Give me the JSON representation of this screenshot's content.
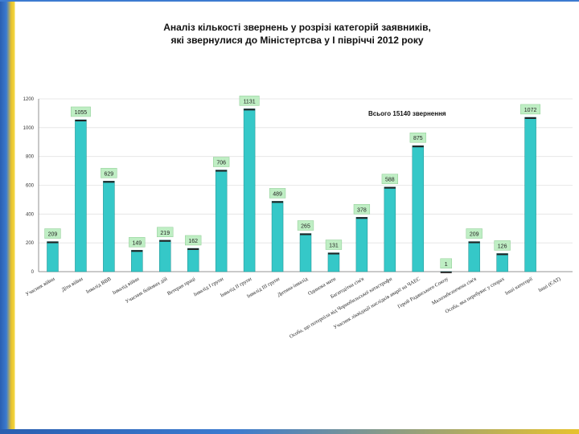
{
  "title_line1": "Аналіз кількості звернень у розрізі категорій заявників,",
  "title_line2": "які звернулися до Міністертсва у І півріччі 2012 року",
  "chart_data": {
    "type": "bar",
    "title": "Аналіз кількості звернень у розрізі категорій заявників, які звернулися до Міністертсва у І півріччі 2012 року",
    "annotation": "Всього 15140 звернення",
    "ylim": [
      0,
      1200
    ],
    "yticks": [
      "1200",
      "1000",
      "800",
      "600",
      "400",
      "200",
      "0"
    ],
    "bar_color": "#35c8c8",
    "categories": [
      "Учасник війни",
      "Діти війни",
      "Інвалід ВВВ",
      "Інвалід війни",
      "Учасник бойових дій",
      "Ветеран праці",
      "Інвалід І групи",
      "Інвалід ІІ групи",
      "Інвалід ІІІ групи",
      "Дитина-інвалід",
      "Одинока мати",
      "Багатодітна сім'я",
      "Особа, що потерпіла від Чорнобильської катастрофи",
      "Учасник ліквідації наслідків аварії на ЧАЕС",
      "Герой Радянського Союзу",
      "Малозабезпечена сім'я",
      "Особа, яка перебуває у спорах",
      "Інші категорії",
      "Інші (ЄАТ)"
    ],
    "values": [
      209,
      1055,
      629,
      149,
      219,
      162,
      706,
      1131,
      489,
      265,
      131,
      378,
      588,
      875,
      1,
      209,
      126,
      1072,
      0
    ],
    "value_labels": [
      "209",
      "1055",
      "629",
      "149",
      "219",
      "162",
      "706",
      "1131",
      "489",
      "265",
      "131",
      "378",
      "588",
      "875",
      "1",
      "209",
      "126",
      "1072",
      ""
    ]
  }
}
